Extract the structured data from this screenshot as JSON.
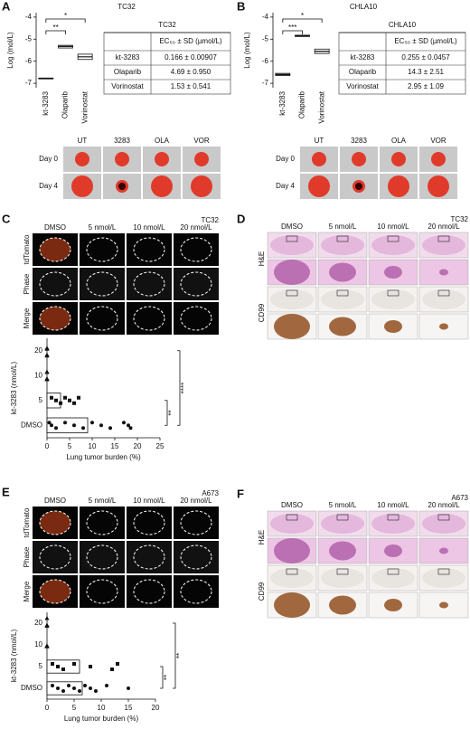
{
  "panels": {
    "letters": [
      "A",
      "B",
      "C",
      "D",
      "E",
      "F"
    ],
    "tables": [
      {
        "title": "TC32",
        "header": "EC₅₀ ± SD (µmol/L)",
        "rows": [
          [
            "kt-3283",
            "0.166 ± 0.00907"
          ],
          [
            "Olaparib",
            "4.69 ± 0.950"
          ],
          [
            "Vorinostat",
            "1.53 ± 0.541"
          ]
        ]
      },
      {
        "title": "CHLA10",
        "header": "EC₅₀ ± SD (µmol/L)",
        "rows": [
          [
            "kt-3283",
            "0.255 ± 0.0457"
          ],
          [
            "Olaparib",
            "14.3 ± 2.51"
          ],
          [
            "Vorinostat",
            "2.95 ± 1.09"
          ]
        ]
      }
    ],
    "grids": [
      {
        "cols": [
          "UT",
          "3283",
          "OLA",
          "VOR"
        ],
        "rows": [
          "Day 0",
          "Day 4"
        ]
      },
      {
        "cols": [
          "UT",
          "3283",
          "OLA",
          "VOR"
        ],
        "rows": [
          "Day 0",
          "Day 4"
        ]
      },
      {
        "cols": [
          "DMSO",
          "5 nmol/L",
          "10 nmol/L",
          "20 nmol/L"
        ],
        "rows": [
          "tdTomato",
          "Phase",
          "Merge"
        ],
        "tag": "TC32"
      },
      {
        "cols": [
          "DMSO",
          "5 nmol/L",
          "10 nmol/L",
          "20 nmol/L"
        ],
        "rows": [
          "H&E",
          "CD99"
        ],
        "tag": "TC32"
      },
      {
        "cols": [
          "DMSO",
          "5 nmol/L",
          "10 nmol/L",
          "20 nmol/L"
        ],
        "rows": [
          "tdTomato",
          "Phase",
          "Merge"
        ],
        "tag": "A673"
      },
      {
        "cols": [
          "DMSO",
          "5 nmol/L",
          "10 nmol/L",
          "20 nmol/L"
        ],
        "rows": [
          "H&E",
          "CD99"
        ],
        "tag": "A673"
      }
    ]
  },
  "chart_data": [
    {
      "type": "box",
      "title": "TC32",
      "ylabel": "Log (mol/L)",
      "categories": [
        "kt-3283",
        "Olaparib",
        "Vorinostat"
      ],
      "q1": [
        -6.8,
        -5.4,
        -5.92
      ],
      "median": [
        -6.78,
        -5.33,
        -5.8
      ],
      "q3": [
        -6.76,
        -5.28,
        -5.68
      ],
      "ylim": [
        -7.2,
        -3.8
      ],
      "yticks": [
        -7,
        -6,
        -5,
        -4
      ],
      "annotations": [
        "**",
        "*"
      ]
    },
    {
      "type": "box",
      "title": "CHLA10",
      "ylabel": "Log (mol/L)",
      "categories": [
        "kt-3283",
        "Olaparib",
        "Vorinostat"
      ],
      "q1": [
        -6.65,
        -4.88,
        -5.65
      ],
      "median": [
        -6.6,
        -4.85,
        -5.55
      ],
      "q3": [
        -6.55,
        -4.82,
        -5.45
      ],
      "ylim": [
        -7.2,
        -3.8
      ],
      "yticks": [
        -7,
        -6,
        -5,
        -4
      ],
      "annotations": [
        "***",
        "*"
      ]
    },
    {
      "type": "hbar",
      "ylabel": "kt-3283 (nmol/L)",
      "xlabel": "Lung tumor burden (%)",
      "categories": [
        "DMSO",
        "5",
        "10",
        "20"
      ],
      "values": [
        9,
        3,
        0,
        0
      ],
      "points": [
        [
          0.5,
          1,
          2,
          4,
          6,
          8,
          10,
          12,
          14,
          17,
          18,
          18.5
        ],
        [
          1,
          2,
          3,
          4,
          5,
          6,
          7
        ],
        [
          0,
          0,
          0,
          0,
          0
        ],
        [
          0,
          0,
          0,
          0,
          0,
          0
        ]
      ],
      "xlim": [
        0,
        25
      ],
      "xticks": [
        0,
        5,
        10,
        15,
        20,
        25
      ],
      "annotations": [
        "**",
        "****"
      ]
    },
    {
      "type": "hbar",
      "ylabel": "kt-3283 (nmol/L)",
      "xlabel": "Lung tumor burden (%)",
      "categories": [
        "DMSO",
        "5",
        "10",
        "20"
      ],
      "values": [
        6.5,
        6,
        0,
        0
      ],
      "points": [
        [
          1,
          2,
          3,
          4,
          5,
          6,
          7,
          8,
          9,
          11,
          15
        ],
        [
          1,
          2,
          3,
          5,
          8,
          12,
          13
        ],
        [
          0,
          0,
          0
        ],
        [
          0,
          0,
          0,
          0
        ]
      ],
      "xlim": [
        0,
        20
      ],
      "xticks": [
        0,
        5,
        10,
        15,
        20
      ],
      "annotations": [
        "**",
        "**"
      ]
    }
  ]
}
